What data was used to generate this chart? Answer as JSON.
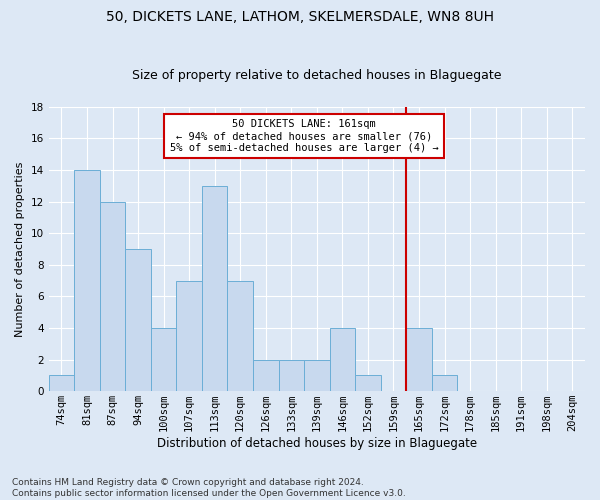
{
  "title": "50, DICKETS LANE, LATHOM, SKELMERSDALE, WN8 8UH",
  "subtitle": "Size of property relative to detached houses in Blaguegate",
  "xlabel": "Distribution of detached houses by size in Blaguegate",
  "ylabel": "Number of detached properties",
  "categories": [
    "74sqm",
    "81sqm",
    "87sqm",
    "94sqm",
    "100sqm",
    "107sqm",
    "113sqm",
    "120sqm",
    "126sqm",
    "133sqm",
    "139sqm",
    "146sqm",
    "152sqm",
    "159sqm",
    "165sqm",
    "172sqm",
    "178sqm",
    "185sqm",
    "191sqm",
    "198sqm",
    "204sqm"
  ],
  "values": [
    1,
    14,
    12,
    9,
    4,
    7,
    13,
    7,
    2,
    2,
    2,
    4,
    1,
    0,
    4,
    1,
    0,
    0,
    0,
    0,
    0
  ],
  "bar_color": "#c8d9ee",
  "bar_edgecolor": "#6baed6",
  "background_color": "#dde8f5",
  "grid_color": "#ffffff",
  "vline_index": 13.5,
  "vline_color": "#cc0000",
  "annotation_line1": "50 DICKETS LANE: 161sqm",
  "annotation_line2": "← 94% of detached houses are smaller (76)",
  "annotation_line3": "5% of semi-detached houses are larger (4) →",
  "annotation_box_color": "#ffffff",
  "annotation_box_edgecolor": "#cc0000",
  "ylim": [
    0,
    18
  ],
  "yticks": [
    0,
    2,
    4,
    6,
    8,
    10,
    12,
    14,
    16,
    18
  ],
  "footer": "Contains HM Land Registry data © Crown copyright and database right 2024.\nContains public sector information licensed under the Open Government Licence v3.0.",
  "title_fontsize": 10,
  "subtitle_fontsize": 9,
  "ylabel_fontsize": 8,
  "xlabel_fontsize": 8.5,
  "tick_fontsize": 7.5,
  "annotation_fontsize": 7.5,
  "footer_fontsize": 6.5
}
